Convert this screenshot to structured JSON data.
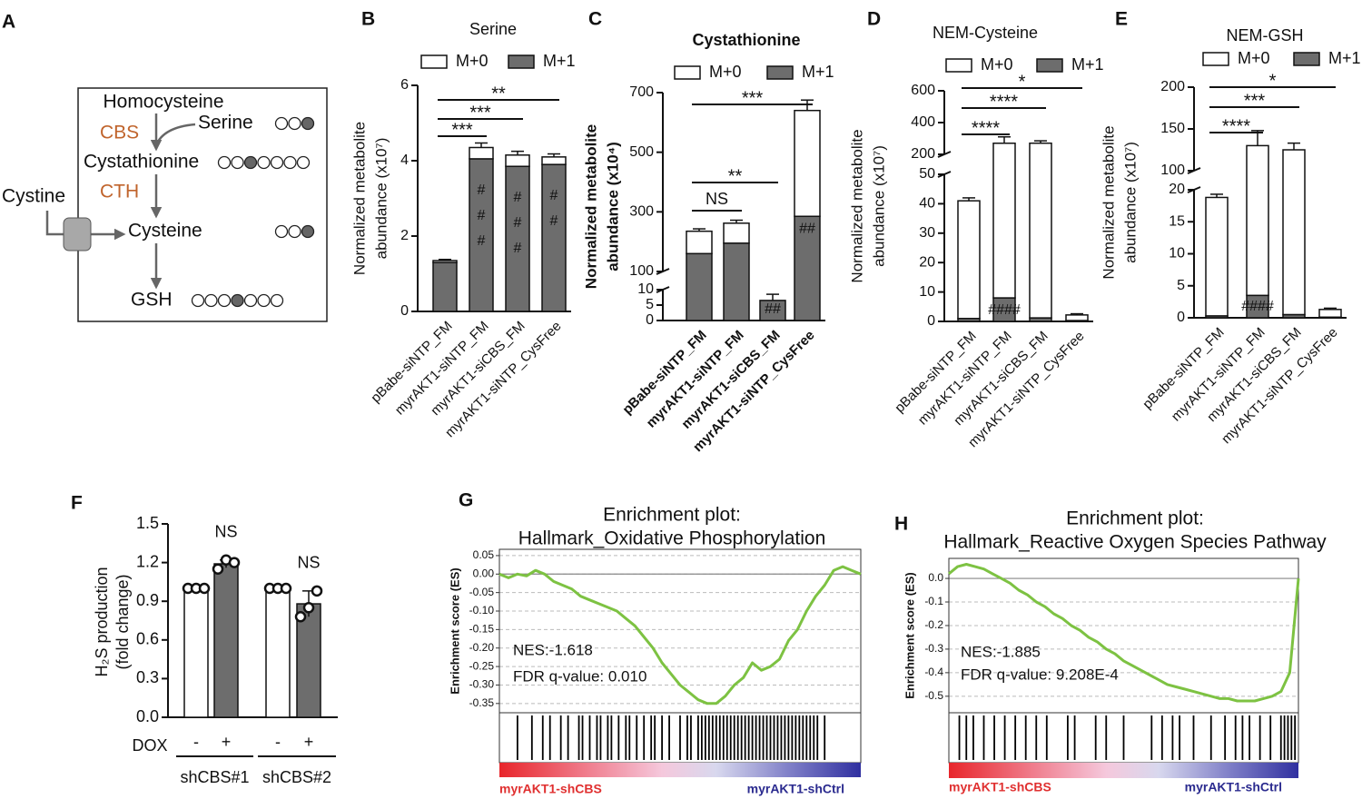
{
  "diagram": {
    "panel": "A",
    "nodes": [
      "Homocysteine",
      "Serine",
      "Cystathionine",
      "Cystine",
      "Cysteine",
      "GSH"
    ],
    "enzymes": [
      "CBS",
      "CTH"
    ]
  },
  "chart_data": [
    {
      "panel": "B",
      "type": "stacked_bar",
      "title": "Serine",
      "ylabel": [
        "Normalized metabolite",
        "abundance (x10⁷)"
      ],
      "categories": [
        "pBabe-siNTP_FM",
        "myrAKT1-siNTP_FM",
        "myrAKT1-siCBS_FM",
        "myrAKT1-siNTP_CysFree"
      ],
      "series": [
        {
          "name": "M+0",
          "color": "#ffffff",
          "values": [
            0.05,
            0.3,
            0.3,
            0.2
          ],
          "errors": [
            0.03,
            0.12,
            0.1,
            0.08
          ]
        },
        {
          "name": "M+1",
          "color": "#6d6d6d",
          "values": [
            1.3,
            4.05,
            3.85,
            3.9
          ]
        }
      ],
      "segments": [
        {
          "ylim": [
            0,
            6
          ],
          "yticks": [
            0,
            2,
            4,
            6
          ]
        }
      ],
      "annotations": [
        {
          "text": "***",
          "from": 0,
          "to": 1
        },
        {
          "text": "***",
          "from": 0,
          "to": 2
        },
        {
          "text": "**",
          "from": 0,
          "to": 3
        }
      ],
      "bar_labels": [
        null,
        "###",
        "###",
        "##"
      ]
    },
    {
      "panel": "C",
      "type": "stacked_bar",
      "title": "Cystathionine",
      "ylabel": [
        "Normalized metabolite",
        "abundance (x10⁴)"
      ],
      "categories": [
        "pBabe-siNTP_FM",
        "myrAKT1-siNTP_FM",
        "myrAKT1-siCBS_FM",
        "myrAKT1-siNTP_CysFree"
      ],
      "series": [
        {
          "name": "M+0",
          "color": "#ffffff",
          "values": [
            75,
            67,
            0,
            355
          ],
          "errors": [
            8,
            10,
            2,
            35
          ]
        },
        {
          "name": "M+1",
          "color": "#6d6d6d",
          "values": [
            160,
            195,
            6.5,
            285
          ]
        }
      ],
      "segments": [
        {
          "ylim": [
            0,
            10
          ],
          "yticks": [
            0,
            5,
            10
          ]
        },
        {
          "ylim": [
            100,
            700
          ],
          "yticks": [
            100,
            300,
            500,
            700
          ]
        }
      ],
      "annotations": [
        {
          "text": "NS",
          "from": 0,
          "to": 1
        },
        {
          "text": "**",
          "from": 0,
          "to": 2
        },
        {
          "text": "***",
          "from": 0,
          "to": 3
        }
      ],
      "bar_labels": [
        null,
        null,
        "##",
        "##"
      ]
    },
    {
      "panel": "D",
      "type": "stacked_bar",
      "title": "NEM-Cysteine",
      "ylabel": [
        "Normalized metabolite",
        "abundance (x10⁷)"
      ],
      "categories": [
        "pBabe-siNTP_FM",
        "myrAKT1-siNTP_FM",
        "myrAKT1-siCBS_FM",
        "myrAKT1-siNTP_CysFree"
      ],
      "series": [
        {
          "name": "M+0",
          "color": "#ffffff",
          "values": [
            40,
            262,
            269,
            1.9
          ],
          "errors": [
            1,
            40,
            15,
            0.4
          ]
        },
        {
          "name": "M+1",
          "color": "#6d6d6d",
          "values": [
            1,
            8,
            1.2,
            0.3
          ]
        }
      ],
      "segments": [
        {
          "ylim": [
            0,
            50
          ],
          "yticks": [
            0,
            10,
            20,
            30,
            40,
            50
          ]
        },
        {
          "ylim": [
            200,
            600
          ],
          "yticks": [
            200,
            400,
            600
          ]
        }
      ],
      "annotations": [
        {
          "text": "****",
          "from": 0,
          "to": 1
        },
        {
          "text": "****",
          "from": 0,
          "to": 2
        },
        {
          "text": "*",
          "from": 0,
          "to": 3
        }
      ],
      "bar_labels": [
        null,
        "####",
        null,
        null
      ]
    },
    {
      "panel": "E",
      "type": "stacked_bar",
      "title": "NEM-GSH",
      "ylabel": [
        "Normalized metabolite",
        "abundance (x10⁷)"
      ],
      "categories": [
        "pBabe-siNTP_FM",
        "myrAKT1-siNTP_FM",
        "myrAKT1-siCBS_FM",
        "myrAKT1-siNTP_CysFree"
      ],
      "series": [
        {
          "name": "M+0",
          "color": "#ffffff",
          "values": [
            18.5,
            126.5,
            124.5,
            1.2
          ],
          "errors": [
            0.5,
            18,
            8,
            0.2
          ]
        },
        {
          "name": "M+1",
          "color": "#6d6d6d",
          "values": [
            0.3,
            3.5,
            0.5,
            0.1
          ]
        }
      ],
      "segments": [
        {
          "ylim": [
            0,
            20
          ],
          "yticks": [
            0,
            5,
            10,
            15,
            20
          ]
        },
        {
          "ylim": [
            100,
            200
          ],
          "yticks": [
            100,
            150,
            200
          ]
        }
      ],
      "annotations": [
        {
          "text": "****",
          "from": 0,
          "to": 1
        },
        {
          "text": "***",
          "from": 0,
          "to": 2
        },
        {
          "text": "*",
          "from": 0,
          "to": 3
        }
      ],
      "bar_labels": [
        null,
        "####",
        null,
        null
      ]
    },
    {
      "panel": "F",
      "type": "bar_points",
      "ylabel": [
        "H₂S production",
        "(fold change)"
      ],
      "values": [
        1.0,
        1.19,
        1.0,
        0.88
      ],
      "errors": [
        0.01,
        0.03,
        0.01,
        0.1
      ],
      "colors": [
        "#ffffff",
        "#6d6d6d",
        "#ffffff",
        "#6d6d6d"
      ],
      "points": [
        [
          1.0,
          1.0,
          1.0
        ],
        [
          1.15,
          1.22,
          1.2
        ],
        [
          1.0,
          1.0,
          1.0
        ],
        [
          0.78,
          0.85,
          0.98
        ]
      ],
      "ylim": [
        0,
        1.5
      ],
      "yticks": [
        {
          "value": 0,
          "label": "0.0"
        },
        0.3,
        0.6,
        0.9,
        1.2,
        1.5
      ],
      "annotations": [
        {
          "text": "NS",
          "bar": 1
        },
        {
          "text": "NS",
          "bar": 3
        }
      ],
      "xlabel": "DOX",
      "signs": [
        "-",
        "+",
        "-",
        "+"
      ],
      "groups": [
        {
          "label": "shCBS#1",
          "bars": [
            0,
            1
          ]
        },
        {
          "label": "shCBS#2",
          "bars": [
            2,
            3
          ]
        }
      ]
    },
    {
      "panel": "G",
      "type": "gsea",
      "title": [
        "Enrichment plot:",
        "Hallmark_Oxidative Phosphorylation"
      ],
      "ylabel": "Enrichment score (ES)",
      "color": "#7dc242",
      "grid": true,
      "x": [
        0,
        0.025,
        0.05,
        0.075,
        0.1,
        0.125,
        0.15,
        0.175,
        0.2,
        0.225,
        0.25,
        0.275,
        0.3,
        0.325,
        0.35,
        0.375,
        0.4,
        0.425,
        0.45,
        0.475,
        0.5,
        0.525,
        0.55,
        0.575,
        0.6,
        0.625,
        0.65,
        0.675,
        0.7,
        0.725,
        0.75,
        0.775,
        0.8,
        0.825,
        0.85,
        0.875,
        0.9,
        0.925,
        0.95,
        0.975,
        1
      ],
      "values": [
        0,
        -0.01,
        0,
        -0.005,
        0.01,
        0,
        -0.02,
        -0.03,
        -0.04,
        -0.06,
        -0.07,
        -0.08,
        -0.09,
        -0.1,
        -0.12,
        -0.14,
        -0.17,
        -0.2,
        -0.24,
        -0.27,
        -0.3,
        -0.32,
        -0.34,
        -0.35,
        -0.35,
        -0.33,
        -0.3,
        -0.28,
        -0.24,
        -0.26,
        -0.25,
        -0.23,
        -0.18,
        -0.15,
        -0.1,
        -0.06,
        -0.03,
        0.01,
        0.02,
        0.01,
        0
      ],
      "xlim": [
        0,
        1
      ],
      "ylim": [
        -0.375,
        0.067
      ],
      "yticks": [
        0.05,
        {
          "value": 0,
          "label": "0.00"
        },
        -0.05,
        {
          "value": -0.1,
          "label": "-0.10"
        },
        -0.15,
        {
          "value": -0.2,
          "label": "-0.20"
        },
        -0.25,
        {
          "value": -0.3,
          "label": "-0.30"
        },
        -0.35
      ],
      "annotations": [
        "NES:-1.618",
        "FDR q-value: 0.010"
      ],
      "hits": [
        0.05,
        0.09,
        0.12,
        0.14,
        0.17,
        0.19,
        0.22,
        0.23,
        0.25,
        0.27,
        0.28,
        0.3,
        0.31,
        0.33,
        0.35,
        0.36,
        0.38,
        0.4,
        0.42,
        0.43,
        0.45,
        0.47,
        0.5,
        0.52,
        0.53,
        0.55,
        0.56,
        0.57,
        0.58,
        0.59,
        0.6,
        0.61,
        0.62,
        0.63,
        0.64,
        0.65,
        0.66,
        0.67,
        0.68,
        0.69,
        0.7,
        0.71,
        0.72,
        0.73,
        0.74,
        0.75,
        0.76,
        0.77,
        0.78,
        0.79,
        0.8,
        0.81,
        0.82,
        0.83,
        0.84,
        0.85,
        0.86,
        0.87,
        0.88,
        0.9
      ],
      "phenotypes": [
        {
          "label": "myrAKT1-shCBS",
          "color": "#e03030"
        },
        {
          "label": "myrAKT1-shCtrl",
          "color": "#2b2b8f"
        }
      ]
    },
    {
      "panel": "H",
      "type": "gsea",
      "title": [
        "Enrichment plot:",
        "Hallmark_Reactive Oxygen Species Pathway"
      ],
      "ylabel": "Enrichment score (ES)",
      "color": "#7dc242",
      "grid": true,
      "x": [
        0,
        0.025,
        0.05,
        0.075,
        0.1,
        0.125,
        0.15,
        0.175,
        0.2,
        0.225,
        0.25,
        0.275,
        0.3,
        0.325,
        0.35,
        0.375,
        0.4,
        0.425,
        0.45,
        0.475,
        0.5,
        0.525,
        0.55,
        0.575,
        0.6,
        0.625,
        0.65,
        0.675,
        0.7,
        0.725,
        0.75,
        0.775,
        0.8,
        0.825,
        0.85,
        0.875,
        0.9,
        0.925,
        0.95,
        0.975,
        1
      ],
      "values": [
        0.02,
        0.05,
        0.06,
        0.05,
        0.04,
        0.02,
        0,
        -0.02,
        -0.05,
        -0.07,
        -0.1,
        -0.12,
        -0.15,
        -0.17,
        -0.2,
        -0.22,
        -0.25,
        -0.27,
        -0.3,
        -0.32,
        -0.35,
        -0.37,
        -0.39,
        -0.41,
        -0.43,
        -0.45,
        -0.46,
        -0.47,
        -0.48,
        -0.49,
        -0.5,
        -0.51,
        -0.51,
        -0.52,
        -0.52,
        -0.52,
        -0.51,
        -0.5,
        -0.48,
        -0.4,
        0
      ],
      "xlim": [
        0,
        1
      ],
      "ylim": [
        -0.57,
        0.085
      ],
      "yticks": [
        {
          "value": 0,
          "label": "0.0"
        },
        -0.1,
        -0.2,
        -0.3,
        -0.4,
        -0.5
      ],
      "annotations": [
        "NES:-1.885",
        "FDR q-value: 9.208E-4"
      ],
      "hits": [
        0.03,
        0.05,
        0.07,
        0.1,
        0.13,
        0.16,
        0.19,
        0.22,
        0.25,
        0.28,
        0.34,
        0.36,
        0.42,
        0.45,
        0.5,
        0.58,
        0.61,
        0.64,
        0.66,
        0.7,
        0.75,
        0.79,
        0.82,
        0.84,
        0.86,
        0.89,
        0.92,
        0.95,
        0.96,
        0.97,
        0.98,
        0.99
      ],
      "phenotypes": [
        {
          "label": "myrAKT1-shCBS",
          "color": "#e03030"
        },
        {
          "label": "myrAKT1-shCtrl",
          "color": "#2b2b8f"
        }
      ]
    }
  ]
}
